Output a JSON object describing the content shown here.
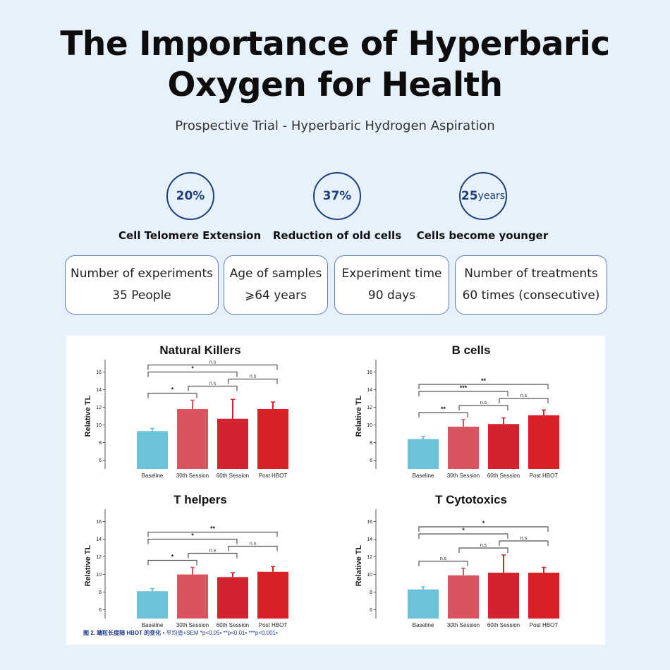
{
  "header": {
    "title_line1": "The Importance of Hyperbaric",
    "title_line2": "Oxygen for Health",
    "subtitle": "Prospective Trial - Hyperbaric Hydrogen Aspiration"
  },
  "stats": [
    {
      "value": "20%",
      "unit": "",
      "label": "Cell Telomere Extension"
    },
    {
      "value": "37%",
      "unit": "",
      "label": "Reduction of old cells"
    },
    {
      "value": "25",
      "unit": "years",
      "label": "Cells become younger"
    }
  ],
  "info_boxes": [
    {
      "label": "Number of experiments",
      "value": "35 People"
    },
    {
      "label": "Age of samples",
      "value": "⩾64 years"
    },
    {
      "label": "Experiment time",
      "value": "90 days"
    },
    {
      "label": "Number of treatments",
      "value": "60 times (consecutive)"
    }
  ],
  "colors": {
    "baseline": "#6cc3d9",
    "session30": "#d9545f",
    "session60": "#d3232e",
    "post": "#d92026",
    "accent": "#1f3e78"
  },
  "chart_data": [
    {
      "type": "bar",
      "title": "Natural Killers",
      "ylabel": "Relative TL",
      "ylim": [
        5,
        17
      ],
      "yticks": [
        6,
        8,
        10,
        12,
        14,
        16
      ],
      "categories": [
        "Baseline",
        "30th Session",
        "60th Session",
        "Post HBOT"
      ],
      "values": [
        9.3,
        11.8,
        10.7,
        11.8
      ],
      "errors": [
        0.3,
        1.0,
        2.2,
        0.8
      ],
      "comparisons": [
        {
          "from": 0,
          "to": 3,
          "label": "n.s"
        },
        {
          "from": 0,
          "to": 2,
          "label": "*"
        },
        {
          "from": 0,
          "to": 1,
          "label": "*"
        },
        {
          "from": 1,
          "to": 2,
          "label": "n.s"
        },
        {
          "from": 2,
          "to": 3,
          "label": "n.s"
        }
      ]
    },
    {
      "type": "bar",
      "title": "B cells",
      "ylabel": "Relative TL",
      "ylim": [
        5,
        17
      ],
      "yticks": [
        6,
        8,
        10,
        12,
        14,
        16
      ],
      "categories": [
        "Baseline",
        "30th Session",
        "60th Session",
        "Post HBOT"
      ],
      "values": [
        8.4,
        9.8,
        10.1,
        11.1
      ],
      "errors": [
        0.3,
        0.8,
        0.7,
        0.6
      ],
      "comparisons": [
        {
          "from": 0,
          "to": 3,
          "label": "**"
        },
        {
          "from": 0,
          "to": 2,
          "label": "***"
        },
        {
          "from": 0,
          "to": 1,
          "label": "**"
        },
        {
          "from": 1,
          "to": 2,
          "label": "n.s"
        },
        {
          "from": 2,
          "to": 3,
          "label": "n.s"
        }
      ]
    },
    {
      "type": "bar",
      "title": "T helpers",
      "ylabel": "Relative TL",
      "ylim": [
        5,
        17
      ],
      "yticks": [
        6,
        8,
        10,
        12,
        14,
        16
      ],
      "categories": [
        "Baseline",
        "30th Session",
        "60th Session",
        "Post HBOT"
      ],
      "values": [
        8.1,
        10.0,
        9.7,
        10.3
      ],
      "errors": [
        0.3,
        0.8,
        0.5,
        0.6
      ],
      "comparisons": [
        {
          "from": 0,
          "to": 3,
          "label": "**"
        },
        {
          "from": 0,
          "to": 2,
          "label": "*"
        },
        {
          "from": 0,
          "to": 1,
          "label": "*"
        },
        {
          "from": 1,
          "to": 2,
          "label": "n.s"
        },
        {
          "from": 2,
          "to": 3,
          "label": "n.s"
        }
      ]
    },
    {
      "type": "bar",
      "title": "T Cytotoxics",
      "ylabel": "Relative TL",
      "ylim": [
        5,
        17
      ],
      "yticks": [
        6,
        8,
        10,
        12,
        14,
        16
      ],
      "categories": [
        "Baseline",
        "30th Session",
        "60th Session",
        "Post HBOT"
      ],
      "values": [
        8.3,
        9.9,
        10.2,
        10.2
      ],
      "errors": [
        0.3,
        0.8,
        2.0,
        0.6
      ],
      "comparisons": [
        {
          "from": 0,
          "to": 3,
          "label": "*"
        },
        {
          "from": 0,
          "to": 2,
          "label": "*"
        },
        {
          "from": 0,
          "to": 1,
          "label": "n.s"
        },
        {
          "from": 1,
          "to": 2,
          "label": "n.s"
        },
        {
          "from": 2,
          "to": 3,
          "label": "n.s"
        }
      ]
    }
  ],
  "caption": {
    "prefix": "图 2. 端粒长度随 HBOT 的变化",
    "text": "• 平均值+SEM *p<0.05• **p<0.01• ***p<0.001•"
  }
}
